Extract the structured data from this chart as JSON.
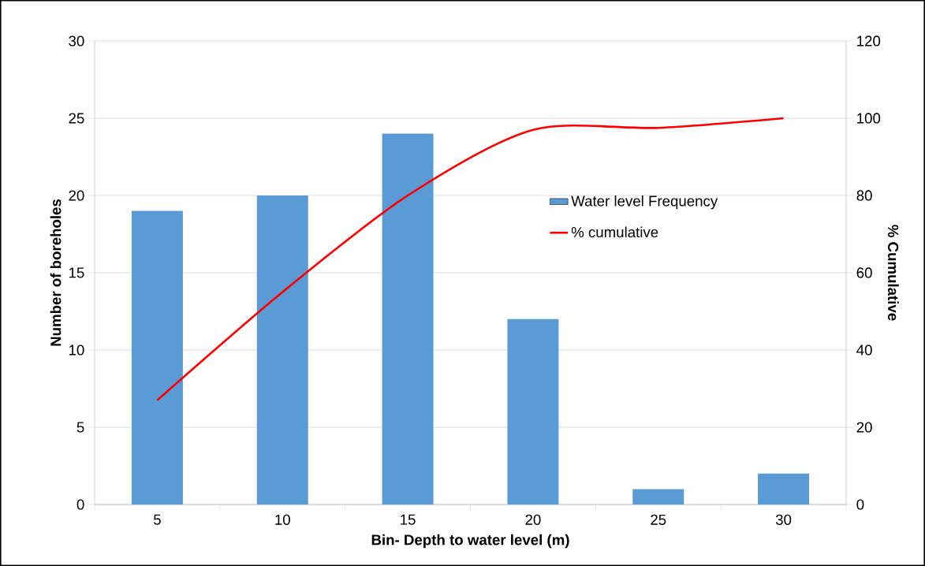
{
  "chart_data": {
    "type": "bar",
    "categories": [
      "5",
      "10",
      "15",
      "20",
      "25",
      "30"
    ],
    "xlabel": "Bin- Depth to water level (m)",
    "ylabel": "Number of boreholes",
    "y2label": "% Cumulative",
    "ylim": [
      0,
      30
    ],
    "yticks": [
      0,
      5,
      10,
      15,
      20,
      25,
      30
    ],
    "y2lim": [
      0,
      120
    ],
    "y2ticks": [
      0,
      20,
      40,
      60,
      80,
      100,
      120
    ],
    "grid": "y",
    "legend": "right",
    "series": [
      {
        "name": "Water level Frequency",
        "color": "#5b9bd5",
        "values": [
          19,
          20,
          24,
          12,
          1,
          2
        ]
      },
      {
        "name": "% cumulative",
        "type": "line",
        "axis": "y2",
        "color": "#ff0000",
        "values": [
          27,
          55,
          80,
          97,
          97.5,
          100
        ]
      }
    ]
  }
}
